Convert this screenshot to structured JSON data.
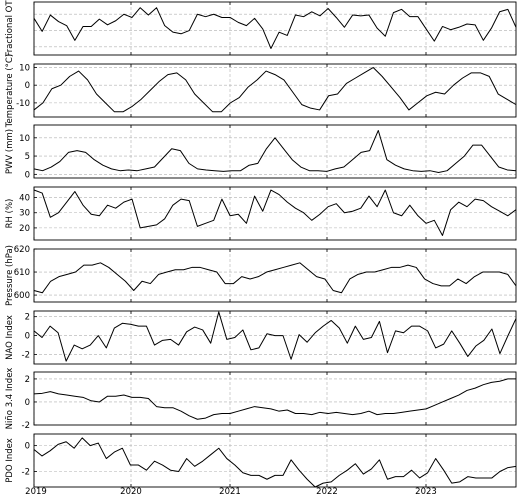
{
  "chart_data": [
    {
      "type": "line",
      "ylabel": "Fractional OT",
      "ylim": [
        0.3,
        0.95
      ],
      "yticks": [],
      "grid": true,
      "values": [
        0.75,
        0.59,
        0.79,
        0.71,
        0.66,
        0.48,
        0.65,
        0.65,
        0.74,
        0.67,
        0.72,
        0.8,
        0.76,
        0.88,
        0.79,
        0.88,
        0.66,
        0.58,
        0.56,
        0.6,
        0.8,
        0.77,
        0.8,
        0.76,
        0.76,
        0.7,
        0.66,
        0.75,
        0.62,
        0.38,
        0.58,
        0.54,
        0.79,
        0.77,
        0.83,
        0.78,
        0.87,
        0.76,
        0.64,
        0.79,
        0.78,
        0.79,
        0.63,
        0.53,
        0.82,
        0.86,
        0.77,
        0.77,
        0.62,
        0.47,
        0.65,
        0.61,
        0.64,
        0.68,
        0.67,
        0.48,
        0.63,
        0.83,
        0.86,
        0.64
      ]
    },
    {
      "type": "line",
      "ylabel": "Temperature (°C)",
      "ylim": [
        -18,
        12
      ],
      "yticks": [
        -10,
        0,
        10
      ],
      "grid": true,
      "values": [
        -14,
        -10,
        -2,
        0,
        5,
        8,
        3,
        -5,
        -10,
        -15,
        -15,
        -12,
        -8,
        -3,
        2,
        6,
        7,
        3,
        -5,
        -10,
        -15,
        -15,
        -10,
        -7,
        -1,
        3,
        8,
        6,
        3,
        -4,
        -11,
        -13,
        -14,
        -6,
        -5,
        1,
        4,
        7,
        10,
        5,
        -1,
        -7,
        -14,
        -10,
        -6,
        -4,
        -5,
        0,
        4,
        7,
        7,
        5,
        -5,
        -8,
        -11
      ]
    },
    {
      "type": "line",
      "ylabel": "PWV (mm)",
      "ylim": [
        -1,
        13.5
      ],
      "yticks": [
        0,
        5,
        10
      ],
      "grid": true,
      "values": [
        1.5,
        1,
        2,
        3.5,
        6,
        6.5,
        6,
        4,
        2.5,
        1.5,
        1,
        1.2,
        1,
        1.5,
        2,
        4.5,
        7,
        6.5,
        3,
        1.5,
        1.2,
        1,
        0.8,
        1,
        1,
        2.5,
        3,
        7,
        10,
        7,
        4,
        2,
        1,
        1,
        0.8,
        1.5,
        2,
        4,
        6,
        6.5,
        12,
        4,
        2.5,
        1.5,
        1,
        0.8,
        1,
        0.5,
        1,
        3,
        5,
        8,
        8,
        5,
        2,
        1.2,
        1
      ]
    },
    {
      "type": "line",
      "ylabel": "RH (%)",
      "ylim": [
        12,
        47
      ],
      "yticks": [
        20,
        30,
        40
      ],
      "grid": true,
      "values": [
        45,
        43,
        27,
        30,
        37,
        44,
        35,
        29,
        28,
        35,
        33,
        37,
        39,
        20,
        21,
        22,
        26,
        35,
        39,
        38,
        21,
        23,
        25,
        39,
        28,
        29,
        23,
        41,
        31,
        45,
        42,
        37,
        33,
        30,
        25,
        29,
        34,
        36,
        30,
        31,
        33,
        41,
        34,
        45,
        30,
        28,
        35,
        28,
        23,
        25,
        15,
        32,
        37,
        34,
        39,
        38,
        34,
        31,
        28,
        32
      ]
    },
    {
      "type": "line",
      "ylabel": "Pressure (hPa)",
      "ylim": [
        597,
        620
      ],
      "yticks": [
        600,
        610,
        620
      ],
      "grid": true,
      "values": [
        602,
        601,
        606,
        608,
        609,
        610,
        613,
        613,
        614,
        612,
        609,
        606,
        602,
        606,
        605,
        609,
        610,
        611,
        611,
        612,
        612,
        611,
        610,
        605,
        605,
        608,
        607,
        608,
        610,
        611,
        612,
        613,
        614,
        611,
        608,
        607,
        602,
        601,
        607,
        609,
        610,
        610,
        611,
        612,
        612,
        613,
        612,
        607,
        605,
        604,
        604,
        607,
        605,
        608,
        610,
        610,
        610,
        609,
        604
      ]
    },
    {
      "type": "line",
      "ylabel": "NAO Index",
      "ylim": [
        -3,
        2.6
      ],
      "yticks": [
        -2,
        0,
        2
      ],
      "grid": true,
      "values": [
        0.5,
        -0.2,
        1,
        0.3,
        -2.7,
        -1,
        -1.4,
        -1,
        0,
        -1.3,
        0.8,
        1.3,
        1.2,
        1,
        1,
        -1,
        -0.5,
        -0.4,
        -1,
        0.4,
        0.9,
        0.6,
        -0.8,
        2.5,
        -0.4,
        -0.2,
        0.6,
        -1.5,
        -1.3,
        0.2,
        0,
        0,
        -2.5,
        0.1,
        -0.7,
        0.3,
        1,
        1.6,
        0.8,
        -0.8,
        1,
        -0.4,
        -0.2,
        1.5,
        -1.8,
        0.5,
        0.3,
        1,
        1,
        0.5,
        -1.3,
        -0.9,
        0.5,
        -0.8,
        -2.2,
        -1.1,
        -0.5,
        0.7,
        -1.9,
        0,
        1.8
      ]
    },
    {
      "type": "line",
      "ylabel": "Niño 3.4 Index",
      "ylim": [
        -2,
        2.6
      ],
      "yticks": [
        -2,
        0,
        2
      ],
      "grid": true,
      "values": [
        0.7,
        0.75,
        0.9,
        0.7,
        0.6,
        0.5,
        0.4,
        0.1,
        0,
        0.5,
        0.5,
        0.6,
        0.4,
        0.4,
        0.3,
        -0.4,
        -0.5,
        -0.5,
        -0.8,
        -1.2,
        -1.5,
        -1.4,
        -1.1,
        -1,
        -1,
        -0.8,
        -0.6,
        -0.4,
        -0.5,
        -0.6,
        -0.8,
        -0.7,
        -1,
        -1,
        -1.1,
        -0.9,
        -1,
        -0.9,
        -1,
        -1.1,
        -1,
        -0.8,
        -1.1,
        -1,
        -1,
        -0.9,
        -0.8,
        -0.7,
        -0.6,
        -0.3,
        0,
        0.3,
        0.6,
        1,
        1.2,
        1.5,
        1.7,
        1.8,
        2,
        2
      ]
    },
    {
      "type": "line",
      "ylabel": "PDO Index",
      "ylim": [
        -3.2,
        0.9
      ],
      "yticks": [
        -2,
        0
      ],
      "grid": true,
      "values": [
        -0.3,
        -0.8,
        -0.4,
        0.1,
        0.3,
        -0.2,
        0.6,
        0,
        0.2,
        -1,
        -0.5,
        -0.2,
        -1.5,
        -1.5,
        -1.9,
        -1.2,
        -1.5,
        -1.9,
        -2,
        -1,
        -1.6,
        -1.2,
        -0.7,
        -0.2,
        -1,
        -1.5,
        -2.1,
        -2.3,
        -2.3,
        -2.6,
        -2.3,
        -2.3,
        -1.1,
        -1.9,
        -2.6,
        -3.2,
        -2.9,
        -2.8,
        -2.3,
        -1.9,
        -1.4,
        -2.2,
        -1.8,
        -1.1,
        -2.6,
        -2.4,
        -2.4,
        -1.9,
        -2.5,
        -2.1,
        -1,
        -1.9,
        -2.9,
        -2.8,
        -2.4,
        -2.5,
        -2.5,
        -2.5,
        -2,
        -1.7,
        -1.6
      ]
    }
  ],
  "xaxis": {
    "ticklabels": [
      "2019",
      "2020",
      "2021",
      "2022",
      "2023"
    ]
  }
}
